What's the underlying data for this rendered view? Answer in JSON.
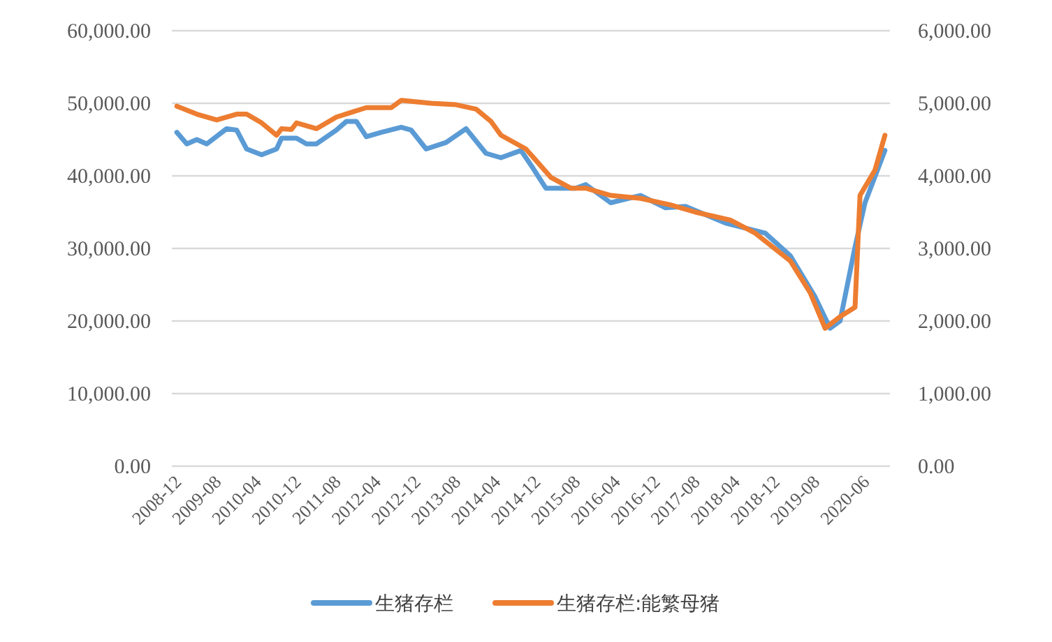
{
  "chart_data": {
    "type": "line",
    "legend": "bottom",
    "grid": "y",
    "line_style": "solid",
    "xlim": [
      "2008-11",
      "2020-11"
    ],
    "xticks": [
      "2008-12",
      "2009-08",
      "2010-04",
      "2010-12",
      "2011-08",
      "2012-04",
      "2012-12",
      "2013-08",
      "2014-04",
      "2014-12",
      "2015-08",
      "2016-04",
      "2016-12",
      "2017-08",
      "2018-04",
      "2018-12",
      "2019-08",
      "2020-06"
    ],
    "ylim": [
      0,
      60000
    ],
    "yticks": [
      {
        "value": 0,
        "label": "0.00"
      },
      {
        "value": 10000,
        "label": "10,000.00"
      },
      {
        "value": 20000,
        "label": "20,000.00"
      },
      {
        "value": 30000,
        "label": "30,000.00"
      },
      {
        "value": 40000,
        "label": "40,000.00"
      },
      {
        "value": 50000,
        "label": "50,000.00"
      },
      {
        "value": 60000,
        "label": "60,000.00"
      }
    ],
    "y2lim": [
      0,
      6000
    ],
    "y2ticks": [
      {
        "value": 0,
        "label": "0.00"
      },
      {
        "value": 1000,
        "label": "1,000.00"
      },
      {
        "value": 2000,
        "label": "2,000.00"
      },
      {
        "value": 3000,
        "label": "3,000.00"
      },
      {
        "value": 4000,
        "label": "4,000.00"
      },
      {
        "value": 5000,
        "label": "5,000.00"
      },
      {
        "value": 6000,
        "label": "6,000.00"
      }
    ],
    "series": [
      {
        "name": "生猪存栏",
        "color": "#5b9bd5",
        "x": [
          "2008-12",
          "2009-02",
          "2009-04",
          "2009-06",
          "2009-10",
          "2009-12",
          "2010-02",
          "2010-05",
          "2010-08",
          "2010-09",
          "2010-12",
          "2011-02",
          "2011-04",
          "2011-08",
          "2011-10",
          "2011-12",
          "2012-02",
          "2012-05",
          "2012-09",
          "2012-11",
          "2013-02",
          "2013-06",
          "2013-10",
          "2014-02",
          "2014-05",
          "2014-09",
          "2014-11",
          "2015-02",
          "2015-08",
          "2015-10",
          "2016-03",
          "2016-09",
          "2017-02",
          "2017-06",
          "2018-02",
          "2018-10",
          "2019-03",
          "2019-08",
          "2019-11",
          "2020-01",
          "2020-04",
          "2020-06",
          "2020-10"
        ],
        "values": [
          46000,
          44400,
          45000,
          44400,
          46500,
          46300,
          43700,
          42900,
          43700,
          45200,
          45200,
          44400,
          44400,
          46300,
          47500,
          47500,
          45400,
          46000,
          46700,
          46300,
          43700,
          44600,
          46500,
          43100,
          42500,
          43500,
          41500,
          38300,
          38300,
          38800,
          36300,
          37300,
          35600,
          35800,
          33500,
          32100,
          29000,
          23300,
          19000,
          20000,
          30200,
          36300,
          43500
        ]
      },
      {
        "name": "生猪存栏:能繁母猪",
        "color": "#ed7d31",
        "axis": "y2",
        "x": [
          "2008-12",
          "2009-04",
          "2009-08",
          "2009-12",
          "2010-02",
          "2010-05",
          "2010-08",
          "2010-09",
          "2010-11",
          "2010-12",
          "2011-04",
          "2011-08",
          "2012-02",
          "2012-07",
          "2012-09",
          "2013-03",
          "2013-08",
          "2013-12",
          "2014-03",
          "2014-05",
          "2014-10",
          "2015-03",
          "2015-07",
          "2015-10",
          "2016-03",
          "2016-09",
          "2017-03",
          "2017-08",
          "2018-03",
          "2018-08",
          "2019-03",
          "2019-07",
          "2019-10",
          "2020-01",
          "2020-04",
          "2020-05",
          "2020-08",
          "2020-10"
        ],
        "values": [
          4960,
          4850,
          4770,
          4850,
          4850,
          4730,
          4560,
          4650,
          4640,
          4730,
          4650,
          4810,
          4940,
          4940,
          5040,
          5000,
          4980,
          4920,
          4750,
          4560,
          4370,
          3980,
          3830,
          3830,
          3730,
          3690,
          3600,
          3500,
          3390,
          3210,
          2830,
          2390,
          1900,
          2060,
          2190,
          3730,
          4080,
          4560
        ]
      }
    ]
  }
}
